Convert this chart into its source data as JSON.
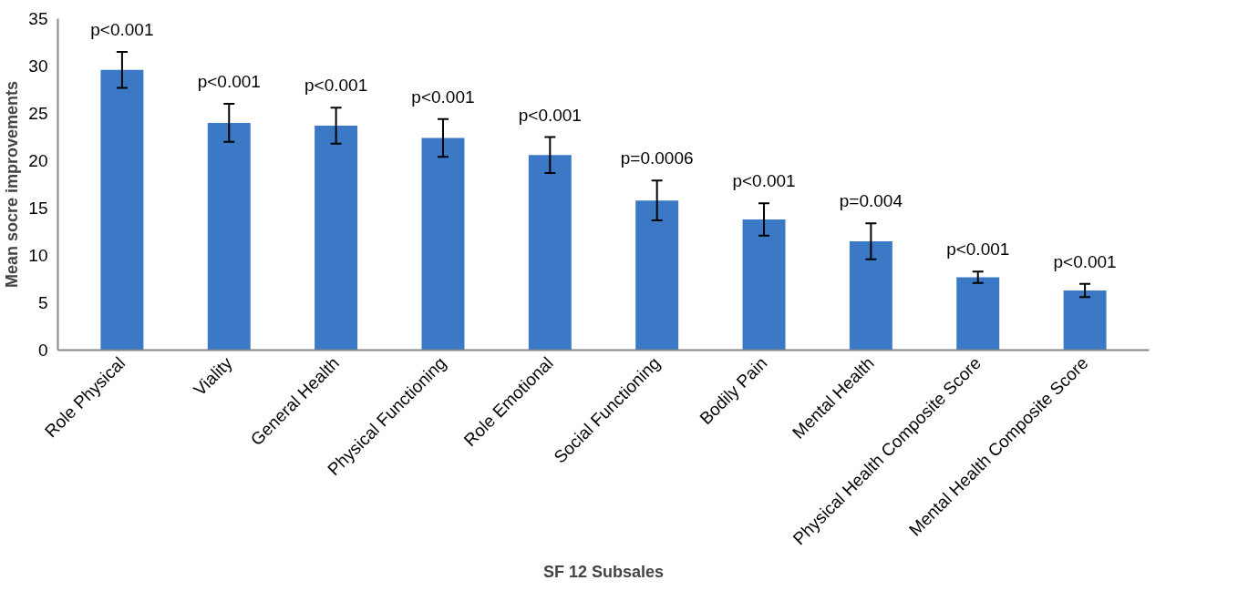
{
  "chart_data": {
    "type": "bar",
    "xlabel": "SF 12 Subsales",
    "ylabel": "Mean socre improvements",
    "categories": [
      "Role Physical",
      "Viality",
      "General Health",
      "Physical Functioning",
      "Role Emotional",
      "Social Functioning",
      "Bodily Pain",
      "Mental Health",
      "Physical Health Composite Score",
      "Mental Health Composite Score"
    ],
    "values": [
      29.6,
      24.0,
      23.7,
      22.4,
      20.6,
      15.8,
      13.8,
      11.5,
      7.7,
      6.3
    ],
    "errors": [
      1.9,
      2.0,
      1.9,
      2.0,
      1.9,
      2.1,
      1.7,
      1.9,
      0.6,
      0.7
    ],
    "annotations": [
      {
        "text": "p<0.001",
        "x": "Role Physical",
        "y": 31.5
      },
      {
        "text": "p<0.001",
        "x": "Viality",
        "y": 26.0
      },
      {
        "text": "p<0.001",
        "x": "General Health",
        "y": 25.6
      },
      {
        "text": "p<0.001",
        "x": "Physical Functioning",
        "y": 24.4
      },
      {
        "text": "p<0.001",
        "x": "Role Emotional",
        "y": 22.5
      },
      {
        "text": "p=0.0006",
        "x": "Social Functioning",
        "y": 17.9
      },
      {
        "text": "p<0.001",
        "x": "Bodily Pain",
        "y": 15.5
      },
      {
        "text": "p=0.004",
        "x": "Mental Health",
        "y": 13.4
      },
      {
        "text": "p<0.001",
        "x": "Physical Health Composite Score",
        "y": 8.3
      },
      {
        "text": "p<0.001",
        "x": "Mental Health Composite Score",
        "y": 7.0
      }
    ],
    "color": "#3b78c6",
    "ylim": [
      0,
      35
    ],
    "yticks": [
      0,
      5,
      10,
      15,
      20,
      25,
      30,
      35
    ],
    "grid": false
  }
}
